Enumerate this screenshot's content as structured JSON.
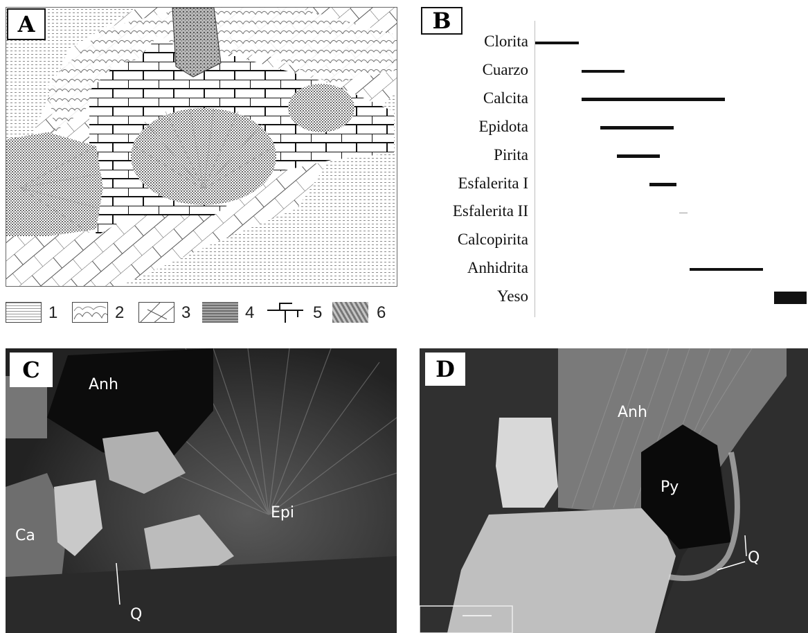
{
  "panelA": {
    "label": "A",
    "legend": [
      {
        "num": "1",
        "pattern": "fine-dots-icon"
      },
      {
        "num": "2",
        "pattern": "scalloped-crust-icon"
      },
      {
        "num": "3",
        "pattern": "bladed-crystal-icon"
      },
      {
        "num": "4",
        "pattern": "dense-hatch-icon"
      },
      {
        "num": "5",
        "pattern": "brick-icon"
      },
      {
        "num": "6",
        "pattern": "coarse-stipple-icon"
      }
    ]
  },
  "panelB": {
    "label": "B",
    "chart_data": {
      "type": "bar",
      "categories": [
        "Clorita",
        "Cuarzo",
        "Calcita",
        "Epidota",
        "Pirita",
        "Esfalerita I",
        "Esfalerita II",
        "Calcopirita",
        "Anhidrita",
        "Yeso"
      ],
      "ranges": [
        [
          0.0,
          0.16
        ],
        [
          0.17,
          0.33
        ],
        [
          0.17,
          0.7
        ],
        [
          0.24,
          0.51
        ],
        [
          0.3,
          0.46
        ],
        [
          0.42,
          0.52
        ],
        [
          0.53,
          0.56
        ],
        null,
        [
          0.57,
          0.84
        ],
        [
          0.88,
          1.0
        ]
      ]
    }
  },
  "panelC": {
    "label": "C",
    "annotations": [
      "Anh",
      "Epi",
      "Ca",
      "Q"
    ]
  },
  "panelD": {
    "label": "D",
    "annotations": [
      "Anh",
      "Py",
      "Q"
    ]
  }
}
